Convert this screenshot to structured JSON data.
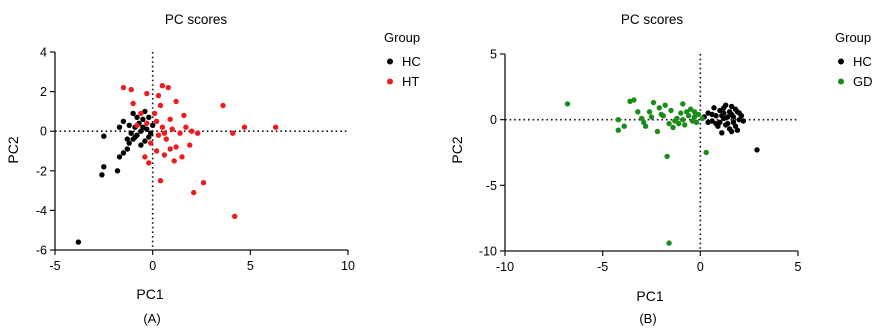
{
  "chart_data": [
    {
      "type": "scatter",
      "panel": "(A)",
      "title": "PC scores",
      "xlabel": "PC1",
      "ylabel": "PC2",
      "xlim": [
        -5,
        10
      ],
      "ylim": [
        -6,
        4
      ],
      "xticks": [
        "-5",
        "0",
        "5",
        "10"
      ],
      "yticks": [
        "-6",
        "-4",
        "-2",
        "0",
        "2",
        "4"
      ],
      "reference_lines": [
        "x=0 dotted",
        "y=0 dotted"
      ],
      "grid": false,
      "legend_title": "Group",
      "legend_position": "right",
      "series": [
        {
          "name": "HC",
          "color": "#000000",
          "points": [
            [
              -3.8,
              -5.6
            ],
            [
              -2.6,
              -2.2
            ],
            [
              -2.5,
              -1.8
            ],
            [
              -2.5,
              -0.25
            ],
            [
              -1.8,
              -2.0
            ],
            [
              -1.7,
              -1.3
            ],
            [
              -1.5,
              -1.1
            ],
            [
              -1.3,
              -0.9
            ],
            [
              -1.2,
              -0.6
            ],
            [
              -1.0,
              -0.4
            ],
            [
              -0.8,
              -0.2
            ],
            [
              -1.1,
              -0.1
            ],
            [
              -0.9,
              0.2
            ],
            [
              -0.7,
              0.4
            ],
            [
              -0.5,
              0.6
            ],
            [
              -0.3,
              0.1
            ],
            [
              -0.2,
              -0.3
            ],
            [
              -0.6,
              -0.7
            ],
            [
              -1.0,
              0.9
            ],
            [
              -1.5,
              0.5
            ],
            [
              -1.7,
              0.2
            ],
            [
              -0.4,
              1.0
            ],
            [
              -0.2,
              0.7
            ],
            [
              0.0,
              0.3
            ],
            [
              -0.6,
              0.0
            ],
            [
              -0.9,
              -0.3
            ],
            [
              -0.4,
              -0.5
            ],
            [
              -0.1,
              -0.1
            ],
            [
              -1.2,
              0.3
            ],
            [
              -0.8,
              0.7
            ],
            [
              -1.3,
              -0.4
            ],
            [
              -0.5,
              0.2
            ]
          ]
        },
        {
          "name": "HT",
          "color": "#ee1c1c",
          "points": [
            [
              -1.5,
              2.2
            ],
            [
              -1.1,
              2.1
            ],
            [
              -1.0,
              1.4
            ],
            [
              -0.6,
              0.9
            ],
            [
              -0.3,
              1.9
            ],
            [
              0.3,
              1.8
            ],
            [
              0.5,
              2.3
            ],
            [
              0.8,
              2.2
            ],
            [
              0.4,
              1.3
            ],
            [
              1.2,
              1.5
            ],
            [
              1.6,
              0.8
            ],
            [
              0.9,
              0.6
            ],
            [
              0.2,
              0.5
            ],
            [
              0.5,
              0.2
            ],
            [
              0.3,
              -0.2
            ],
            [
              0.7,
              -0.4
            ],
            [
              1.0,
              0.1
            ],
            [
              1.4,
              -0.1
            ],
            [
              2.0,
              0.0
            ],
            [
              2.3,
              -0.1
            ],
            [
              1.9,
              -0.7
            ],
            [
              1.2,
              -0.8
            ],
            [
              1.5,
              -1.3
            ],
            [
              1.1,
              -1.5
            ],
            [
              0.6,
              -1.2
            ],
            [
              0.2,
              -1.0
            ],
            [
              -0.1,
              -0.6
            ],
            [
              -0.4,
              -1.3
            ],
            [
              -0.2,
              -1.6
            ],
            [
              0.4,
              -2.5
            ],
            [
              2.6,
              -2.6
            ],
            [
              2.1,
              -3.1
            ],
            [
              3.6,
              1.3
            ],
            [
              4.1,
              -0.1
            ],
            [
              4.7,
              0.2
            ],
            [
              6.3,
              0.2
            ],
            [
              4.2,
              -4.3
            ],
            [
              -0.3,
              0.4
            ],
            [
              0.1,
              0.9
            ],
            [
              0.6,
              -0.1
            ],
            [
              1.7,
              0.2
            ],
            [
              -0.8,
              0.3
            ],
            [
              0.9,
              -0.9
            ]
          ]
        }
      ],
      "caption": "(A)"
    },
    {
      "type": "scatter",
      "panel": "(B)",
      "title": "PC scores",
      "xlabel": "PC1",
      "ylabel": "PC2",
      "xlim": [
        -10,
        5
      ],
      "ylim": [
        -10,
        5
      ],
      "xticks": [
        "-10",
        "-5",
        "0",
        "5"
      ],
      "yticks": [
        "-10",
        "-5",
        "0",
        "5"
      ],
      "reference_lines": [
        "x=0 dotted",
        "y=0 dotted"
      ],
      "grid": false,
      "legend_title": "Group",
      "legend_position": "right",
      "series": [
        {
          "name": "HC",
          "color": "#000000",
          "points": [
            [
              0.2,
              0.2
            ],
            [
              0.4,
              0.5
            ],
            [
              0.6,
              -0.1
            ],
            [
              0.8,
              0.3
            ],
            [
              1.0,
              0.7
            ],
            [
              1.2,
              0.1
            ],
            [
              1.4,
              -0.3
            ],
            [
              1.6,
              0.4
            ],
            [
              1.8,
              0.8
            ],
            [
              2.0,
              0.0
            ],
            [
              1.3,
              1.1
            ],
            [
              1.5,
              -0.7
            ],
            [
              1.1,
              -1.0
            ],
            [
              0.9,
              -0.5
            ],
            [
              1.7,
              -0.2
            ],
            [
              1.9,
              0.6
            ],
            [
              2.1,
              0.3
            ],
            [
              1.6,
              1.0
            ],
            [
              0.7,
              0.9
            ],
            [
              1.2,
              0.5
            ],
            [
              1.4,
              0.2
            ],
            [
              1.0,
              -0.2
            ],
            [
              0.6,
              0.4
            ],
            [
              1.8,
              -0.5
            ],
            [
              2.2,
              -0.1
            ],
            [
              1.5,
              0.6
            ],
            [
              1.3,
              -0.4
            ],
            [
              0.8,
              -0.3
            ],
            [
              1.7,
              0.2
            ],
            [
              1.1,
              0.3
            ],
            [
              2.9,
              -2.3
            ],
            [
              2.0,
              0.5
            ],
            [
              0.4,
              -0.2
            ],
            [
              1.6,
              -0.9
            ],
            [
              1.9,
              -0.8
            ],
            [
              1.2,
              0.9
            ]
          ]
        },
        {
          "name": "GD",
          "color": "#1a8c1a",
          "points": [
            [
              -6.8,
              1.2
            ],
            [
              -4.2,
              0.0
            ],
            [
              -4.2,
              -0.8
            ],
            [
              -3.6,
              1.4
            ],
            [
              -3.4,
              1.5
            ],
            [
              -3.0,
              0.1
            ],
            [
              -2.8,
              -0.5
            ],
            [
              -2.6,
              0.6
            ],
            [
              -2.4,
              1.3
            ],
            [
              -2.2,
              -0.9
            ],
            [
              -2.1,
              0.9
            ],
            [
              -1.9,
              0.3
            ],
            [
              -1.8,
              1.1
            ],
            [
              -1.6,
              -0.3
            ],
            [
              -1.5,
              0.7
            ],
            [
              -1.4,
              -0.6
            ],
            [
              -1.2,
              0.1
            ],
            [
              -1.0,
              0.5
            ],
            [
              -0.9,
              0.0
            ],
            [
              -0.8,
              -0.4
            ],
            [
              -0.6,
              0.3
            ],
            [
              -0.5,
              0.8
            ],
            [
              -0.4,
              -0.1
            ],
            [
              -0.3,
              0.2
            ],
            [
              -0.2,
              -0.2
            ],
            [
              -0.1,
              0.4
            ],
            [
              0.1,
              0.1
            ],
            [
              -1.7,
              -2.8
            ],
            [
              0.3,
              -2.5
            ],
            [
              -1.6,
              -9.4
            ],
            [
              -3.9,
              -0.5
            ],
            [
              -3.2,
              0.6
            ],
            [
              -2.9,
              -0.2
            ],
            [
              -2.0,
              0.4
            ],
            [
              -1.3,
              -0.1
            ],
            [
              -0.7,
              0.6
            ],
            [
              -2.5,
              0.2
            ],
            [
              -1.1,
              -0.3
            ],
            [
              -0.3,
              0.6
            ],
            [
              -0.9,
              1.2
            ]
          ]
        }
      ],
      "caption": "(B)"
    }
  ]
}
